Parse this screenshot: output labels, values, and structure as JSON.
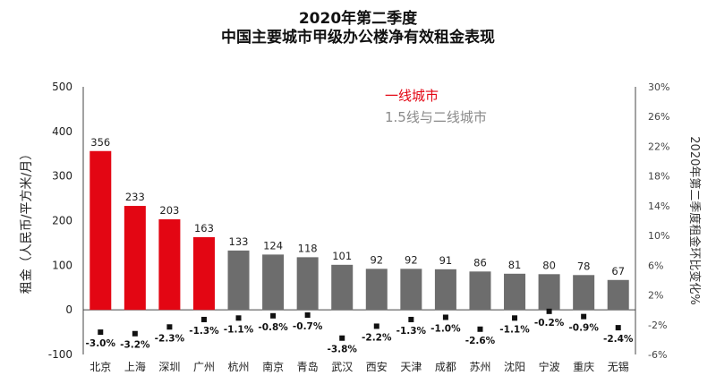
{
  "chart_data": {
    "type": "bar",
    "title_line1": "2020年第二季度",
    "title_line2": "中国主要城市甲级办公楼净有效租金表现",
    "ylabel_left": "租金（人民币/平方米/月）",
    "ylabel_right": "2020年第二季度租金环比变化%",
    "ylim": [
      -100,
      500
    ],
    "yticks": [
      "500",
      "400",
      "300",
      "200",
      "100",
      "0",
      "-100"
    ],
    "ylim_right": [
      -6,
      30
    ],
    "yticks_right": [
      "30%",
      "26%",
      "22%",
      "18%",
      "14%",
      "10%",
      "6%",
      "2%",
      "-2%",
      "-6%"
    ],
    "categories": [
      "北京",
      "上海",
      "深圳",
      "广州",
      "杭州",
      "南京",
      "青岛",
      "武汉",
      "西安",
      "天津",
      "成都",
      "苏州",
      "沈阳",
      "宁波",
      "重庆",
      "无锡"
    ],
    "rent_values": [
      356,
      233,
      203,
      163,
      133,
      124,
      118,
      101,
      92,
      92,
      91,
      86,
      81,
      80,
      78,
      67
    ],
    "rent_labels": [
      "356",
      "233",
      "203",
      "163",
      "133",
      "124",
      "118",
      "101",
      "92",
      "92",
      "91",
      "86",
      "81",
      "80",
      "78",
      "67"
    ],
    "qoq_change": [
      -3.0,
      -3.2,
      -2.3,
      -1.3,
      -1.1,
      -0.8,
      -0.7,
      -3.8,
      -2.2,
      -1.3,
      -1.0,
      -2.6,
      -1.1,
      -0.2,
      -0.9,
      -2.4
    ],
    "qoq_labels": [
      "-3.0%",
      "-3.2%",
      "-2.3%",
      "-1.3%",
      "-1.1%",
      "-0.8%",
      "-0.7%",
      "-3.8%",
      "-2.2%",
      "-1.3%",
      "-1.0%",
      "-2.6%",
      "-1.1%",
      "-0.2%",
      "-0.9%",
      "-2.4%"
    ],
    "tier1_count": 4,
    "legend": [
      "一线城市",
      "1.5线与二线城市"
    ],
    "colors": {
      "tier1": "#e30613",
      "tier2": "#6d6d6d",
      "marker": "#111111"
    },
    "grid": false,
    "legend_position": "top-center"
  }
}
